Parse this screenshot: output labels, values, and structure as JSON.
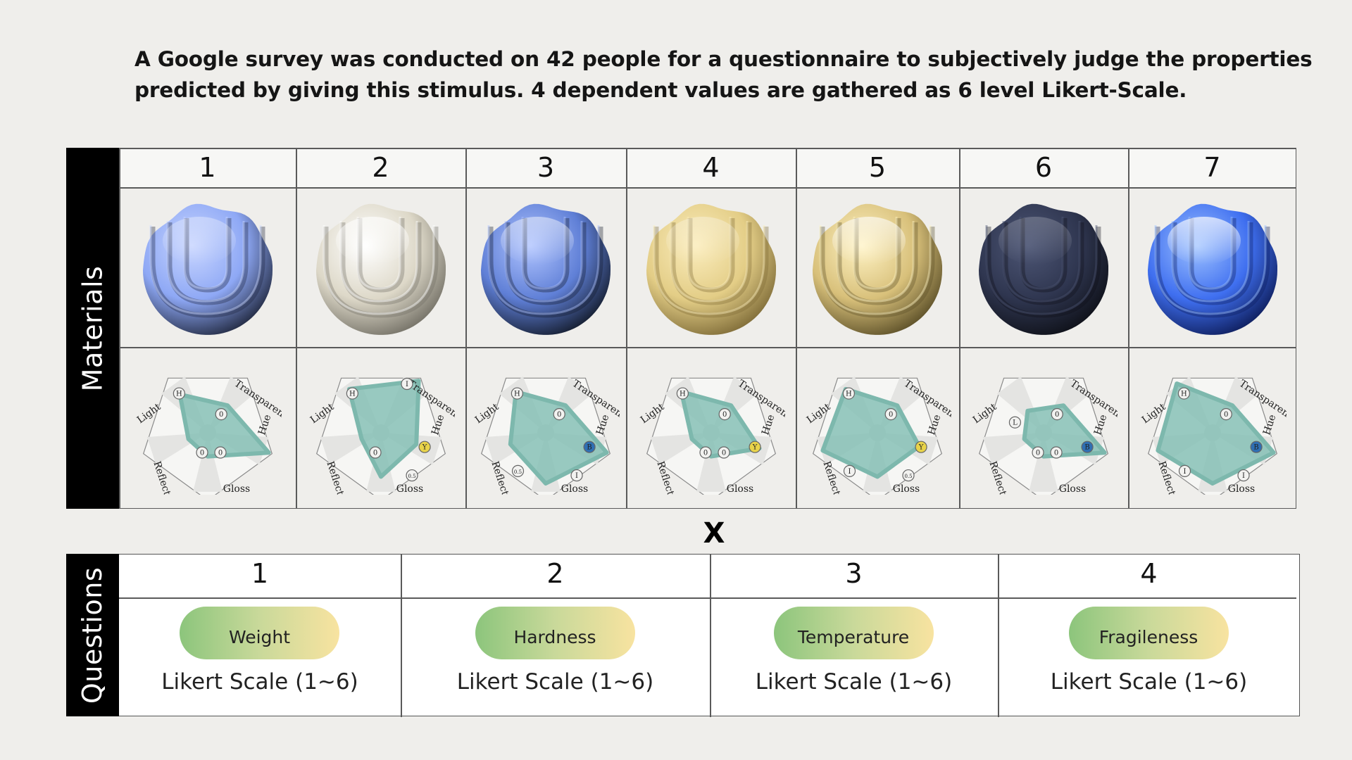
{
  "heading": {
    "line1": "A Google survey was conducted on 42 people for a questionnaire to subjectively judge the properties",
    "line2": "predicted by giving this stimulus. 4 dependent values are gathered as 6 level Likert-Scale."
  },
  "materials_section": {
    "label": "Materials",
    "axis_labels": [
      "Transparency",
      "Hue",
      "Gloss",
      "Reflect",
      "Light"
    ],
    "columns": [
      {
        "num": "1",
        "sphere": {
          "base": "#8ea8f5",
          "dark": "#1c2338",
          "light": "#c9d6ff",
          "spec": 0.35
        },
        "radar": {
          "light": 0.7,
          "trans": 0.5,
          "hue": 0.95,
          "gloss": 0.35,
          "refl": 0.3
        },
        "badges": {
          "light": "H",
          "trans": "0",
          "hue": "",
          "gloss": "0",
          "refl": "0"
        },
        "badge_colors": {}
      },
      {
        "num": "2",
        "sphere": {
          "base": "#ddd8c8",
          "dark": "#6e6b61",
          "light": "#ffffff",
          "spec": 0.9
        },
        "radar": {
          "light": 0.8,
          "trans": 0.95,
          "hue": 0.55,
          "gloss": 0.65,
          "refl": 0.3
        },
        "badges": {
          "light": "H",
          "trans": "I",
          "hue": "Y",
          "gloss": "0.5",
          "refl": "0"
        },
        "badge_colors": {
          "hue": "#e8d34a"
        }
      },
      {
        "num": "3",
        "sphere": {
          "base": "#5f7fd6",
          "dark": "#111826",
          "light": "#b0c4ff",
          "spec": 0.6
        },
        "radar": {
          "light": 0.75,
          "trans": 0.5,
          "hue": 0.95,
          "gloss": 0.75,
          "refl": 0.55
        },
        "badges": {
          "light": "H",
          "trans": "0",
          "hue": "B",
          "gloss": "I",
          "refl": "0.5"
        },
        "badge_colors": {
          "hue": "#2f6fb3"
        }
      },
      {
        "num": "4",
        "sphere": {
          "base": "#e3cd86",
          "dark": "#7a6734",
          "light": "#fbedbd",
          "spec": 0.3
        },
        "radar": {
          "light": 0.75,
          "trans": 0.5,
          "hue": 0.75,
          "gloss": 0.35,
          "refl": 0.3
        },
        "badges": {
          "light": "H",
          "trans": "0",
          "hue": "Y",
          "gloss": "0",
          "refl": "0"
        },
        "badge_colors": {
          "hue": "#e8d34a"
        }
      },
      {
        "num": "5",
        "sphere": {
          "base": "#d8c07a",
          "dark": "#564a24",
          "light": "#fff3c4",
          "spec": 0.85
        },
        "radar": {
          "light": 0.8,
          "trans": 0.5,
          "hue": 0.65,
          "gloss": 0.65,
          "refl": 0.85
        },
        "badges": {
          "light": "H",
          "trans": "0",
          "hue": "Y",
          "gloss": "0.5",
          "refl": "I"
        },
        "badge_colors": {
          "hue": "#e8d34a"
        }
      },
      {
        "num": "6",
        "sphere": {
          "base": "#2f3650",
          "dark": "#0d0f16",
          "light": "#4d5675",
          "spec": 0.1
        },
        "radar": {
          "light": 0.4,
          "trans": 0.5,
          "hue": 0.95,
          "gloss": 0.35,
          "refl": 0.3
        },
        "badges": {
          "light": "L",
          "trans": "0",
          "hue": "B",
          "gloss": "0",
          "refl": "0"
        },
        "badge_colors": {
          "hue": "#2f6fb3"
        }
      },
      {
        "num": "7",
        "sphere": {
          "base": "#3f6ff0",
          "dark": "#0c1a55",
          "light": "#9ec2ff",
          "spec": 1.0
        },
        "radar": {
          "light": 0.9,
          "trans": 0.5,
          "hue": 0.95,
          "gloss": 0.75,
          "refl": 0.85
        },
        "badges": {
          "light": "H",
          "trans": "0",
          "hue": "B",
          "gloss": "I",
          "refl": "I"
        },
        "badge_colors": {
          "hue": "#2f6fb3"
        }
      }
    ]
  },
  "times_symbol": "X",
  "questions_section": {
    "label": "Questions",
    "columns": [
      {
        "num": "1",
        "tag": "Weight",
        "scale": "Likert Scale (1~6)"
      },
      {
        "num": "2",
        "tag": "Hardness",
        "scale": "Likert Scale (1~6)"
      },
      {
        "num": "3",
        "tag": "Temperature",
        "scale": "Likert Scale (1~6)"
      },
      {
        "num": "4",
        "tag": "Fragileness",
        "scale": "Likert Scale (1~6)"
      }
    ]
  }
}
